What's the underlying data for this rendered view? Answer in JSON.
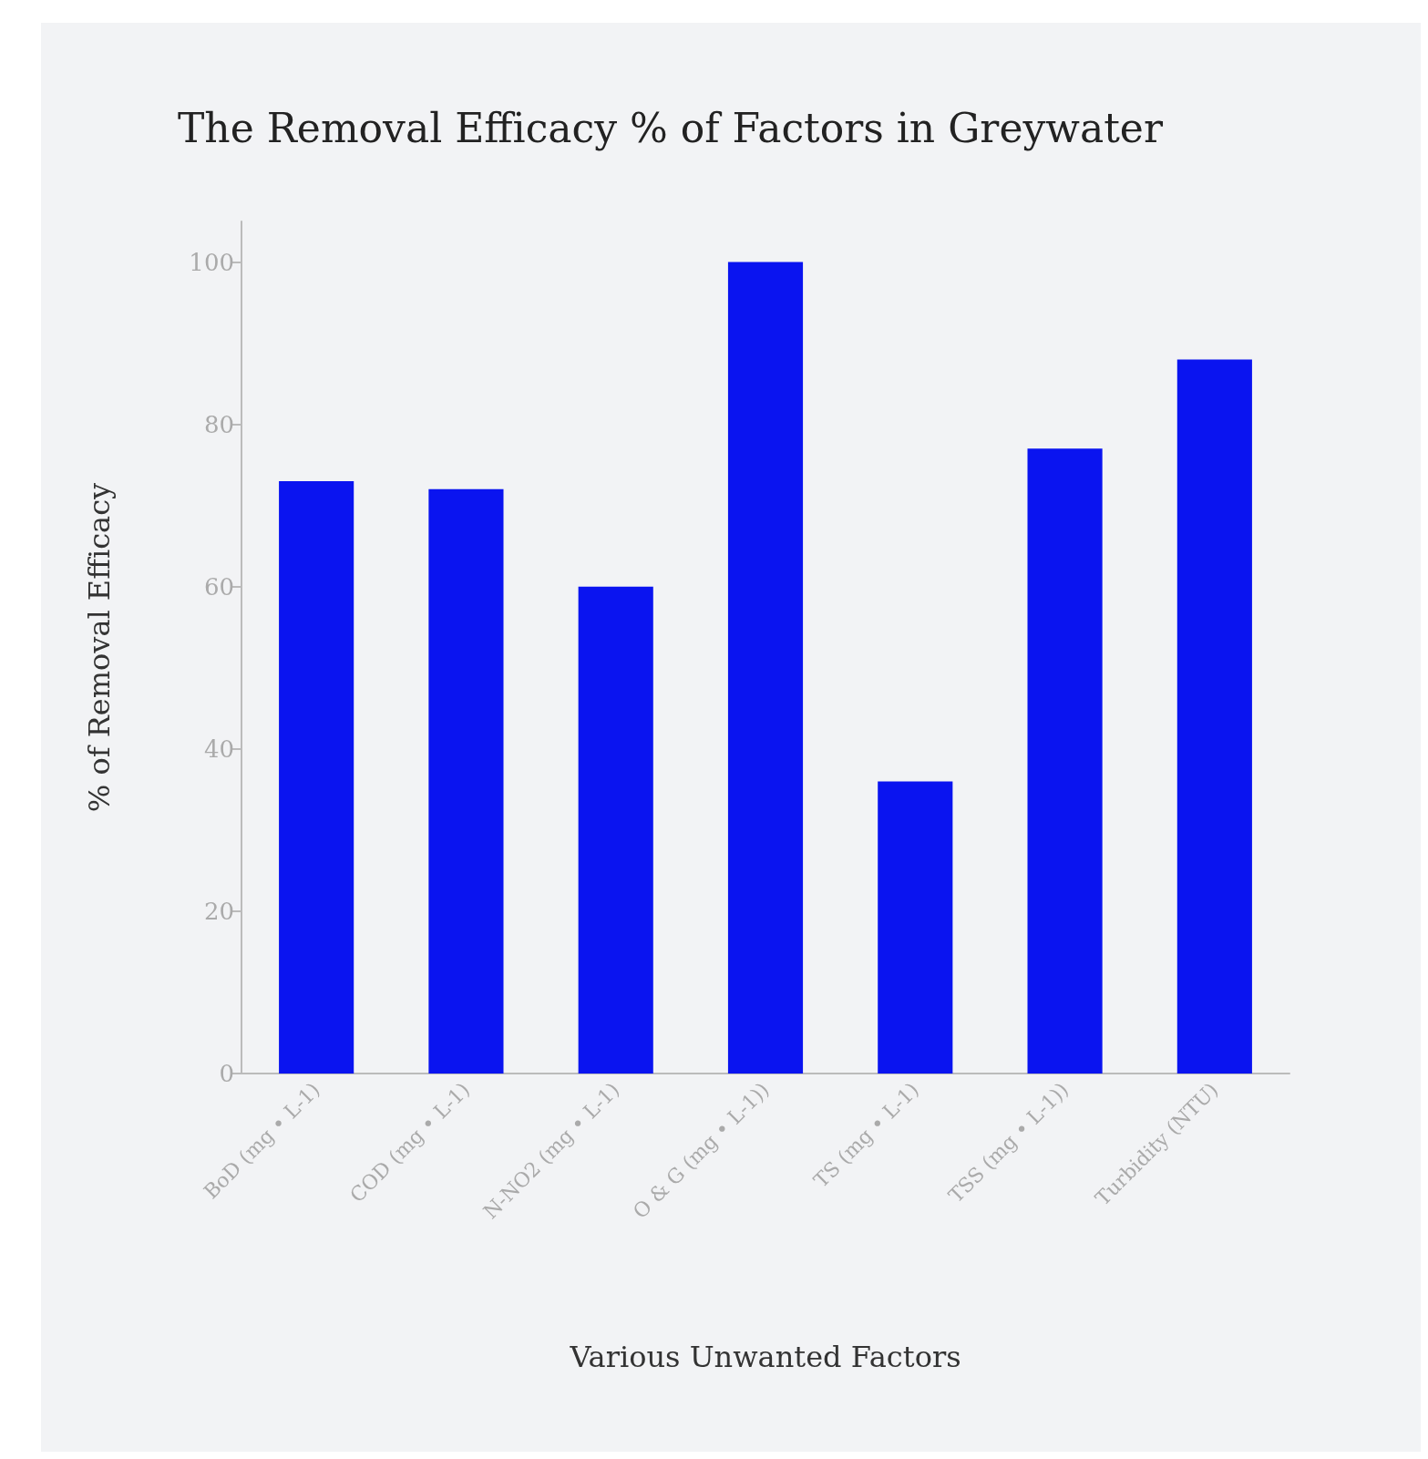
{
  "chart_data": {
    "type": "bar",
    "title": "The Removal Efficacy % of Factors in Greywater",
    "xlabel": "Various Unwanted Factors",
    "ylabel": "% of Removal Efficacy",
    "categories": [
      "BoD (mg • L-1)",
      "COD (mg • L-1)",
      "N-NO2 (mg • L-1)",
      "O & G (mg • L-1))",
      "TS (mg • L-1)",
      "TSS (mg • L-1))",
      "Turbidity (NTU)"
    ],
    "values": [
      73,
      72,
      60,
      100,
      36,
      77,
      88
    ],
    "color": "#0a14f0",
    "ylim": [
      0,
      105
    ],
    "yticks": [
      0,
      20,
      40,
      60,
      80,
      100
    ],
    "grid": false
  }
}
